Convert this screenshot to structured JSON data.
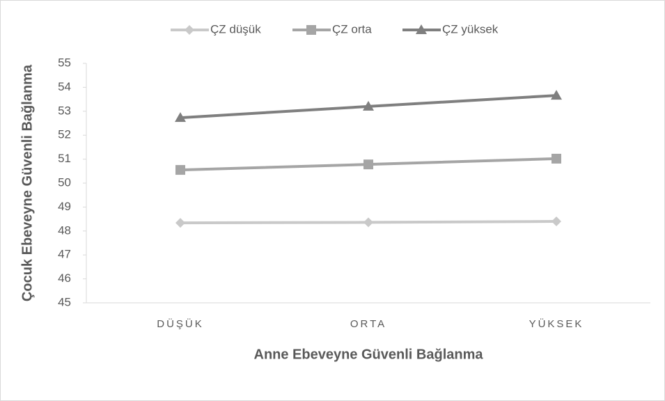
{
  "chart_data": {
    "type": "line",
    "x_label": "Anne Ebeveyne Güvenli Bağlanma",
    "y_label": "Çocuk Ebeveyne Güvenli Bağlanma",
    "categories": [
      "DÜŞÜK",
      "ORTA",
      "YÜKSEK"
    ],
    "series": [
      {
        "name": "ÇZ düşük",
        "color": "#c9c9c9",
        "marker": "diamond",
        "values": [
          48.34,
          48.36,
          48.4
        ]
      },
      {
        "name": "ÇZ orta",
        "color": "#a5a5a5",
        "marker": "square",
        "values": [
          50.55,
          50.78,
          51.02
        ]
      },
      {
        "name": "ÇZ yüksek",
        "color": "#7f7f7f",
        "marker": "triangle",
        "values": [
          52.73,
          53.2,
          53.66
        ]
      }
    ],
    "ylim": [
      45,
      55
    ],
    "yticks": [
      45,
      46,
      47,
      48,
      49,
      50,
      51,
      52,
      53,
      54,
      55
    ],
    "legend": "top"
  }
}
